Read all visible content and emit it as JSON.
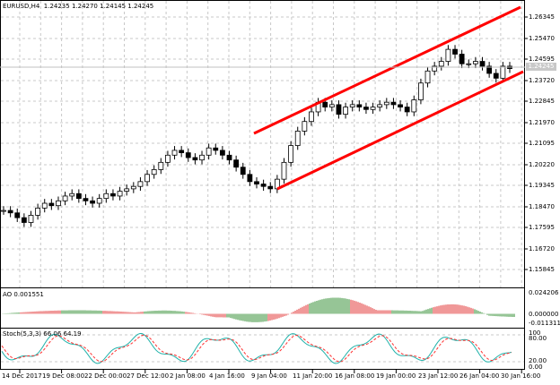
{
  "main": {
    "symbol_label": "EURUSD,H4",
    "ohlc": "1.24235 1.24270 1.24145 1.24245",
    "price_labels": [
      "1.26345",
      "1.25470",
      "1.24595",
      "1.23720",
      "1.22845",
      "1.21970",
      "1.21095",
      "1.20220",
      "1.19345",
      "1.18470",
      "1.17595",
      "1.16720",
      "1.15845"
    ],
    "current_price": "1.24245"
  },
  "ao": {
    "label": "AO 0.001551",
    "scale_labels": [
      "0.024206",
      "0.000000",
      "-0.011311"
    ]
  },
  "stoch": {
    "label": "Stoch(5,3,3) 66.06 64.19",
    "scale_labels": [
      "100",
      "80.00",
      "20.00",
      "0.00"
    ]
  },
  "time_axis": [
    "14 Dec 2017",
    "19 Dec 08:00",
    "22 Dec 00:00",
    "27 Dec 12:00",
    "2 Jan 08:00",
    "4 Jan 16:00",
    "9 Jan 04:00",
    "11 Jan 20:00",
    "16 Jan 08:00",
    "19 Jan 00:00",
    "23 Jan 12:00",
    "26 Jan 04:00",
    "30 Jan 16:00"
  ],
  "colors": {
    "channel": "#ff0000",
    "ao_up": "#2e8b2e",
    "ao_down": "#e03030",
    "stoch_main": "#20b2aa",
    "stoch_signal": "#ff3030",
    "grid": "#c8c8c8"
  },
  "chart_data": {
    "type": "candlestick",
    "price_ylim": [
      1.15845,
      1.26345
    ],
    "close_series": [
      1.183,
      1.182,
      1.18,
      1.178,
      1.181,
      1.184,
      1.186,
      1.185,
      1.187,
      1.189,
      1.19,
      1.188,
      1.187,
      1.186,
      1.188,
      1.19,
      1.189,
      1.191,
      1.192,
      1.193,
      1.195,
      1.198,
      1.2,
      1.203,
      1.206,
      1.208,
      1.207,
      1.205,
      1.204,
      1.206,
      1.209,
      1.208,
      1.206,
      1.204,
      1.201,
      1.198,
      1.195,
      1.194,
      1.193,
      1.192,
      1.196,
      1.203,
      1.21,
      1.216,
      1.22,
      1.224,
      1.228,
      1.226,
      1.227,
      1.223,
      1.226,
      1.227,
      1.226,
      1.225,
      1.226,
      1.227,
      1.228,
      1.227,
      1.226,
      1.224,
      1.229,
      1.236,
      1.241,
      1.243,
      1.245,
      1.25,
      1.248,
      1.244,
      1.244,
      1.245,
      1.243,
      1.24,
      1.238,
      1.243,
      1.242
    ]
  }
}
